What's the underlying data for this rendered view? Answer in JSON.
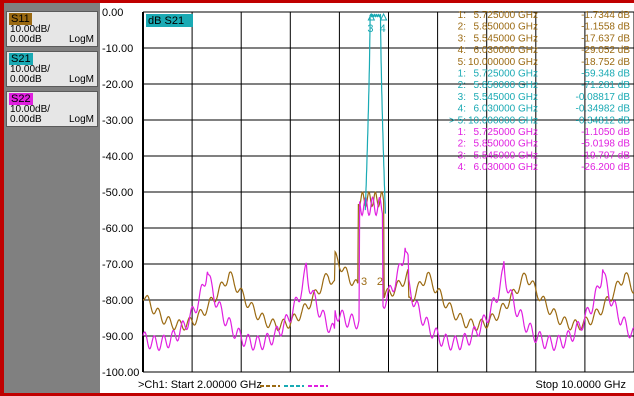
{
  "colors": {
    "s11": "#9b6a12",
    "s21": "#1aaab4",
    "s22": "#e020e0",
    "panel": "#808080",
    "frame": "#c00000",
    "grid": "#000000"
  },
  "traces": [
    {
      "name": "S11",
      "scale": "10.00dB/",
      "ref": "0.00dB",
      "format": "LogM",
      "color": "#9b6a12"
    },
    {
      "name": "S21",
      "scale": "10.00dB/",
      "ref": "0.00dB",
      "format": "LogM",
      "color": "#1aaab4"
    },
    {
      "name": "S22",
      "scale": "10.00dB/",
      "ref": "0.00dB",
      "format": "LogM",
      "color": "#e020e0"
    }
  ],
  "active_trace_label": "dB S21",
  "y_ticks": [
    "0.00",
    "-10.00",
    "-20.00",
    "-30.00",
    "-40.00",
    "-50.00",
    "-60.00",
    "-70.00",
    "-80.00",
    "-90.00",
    "-100.00"
  ],
  "markers": [
    {
      "index": "1:",
      "freq": "5.725000 GHz",
      "value": "-1.7344 dB",
      "color": "#9b6a12"
    },
    {
      "index": "2:",
      "freq": "5.850000 GHz",
      "value": "-1.1558 dB",
      "color": "#9b6a12"
    },
    {
      "index": "3:",
      "freq": "5.545000 GHz",
      "value": "-17.637 dB",
      "color": "#9b6a12"
    },
    {
      "index": "4:",
      "freq": "6.030000 GHz",
      "value": "-29.052 dB",
      "color": "#9b6a12"
    },
    {
      "index": "5:",
      "freq": "10.000000 GHz",
      "value": "-18.752 dB",
      "color": "#9b6a12"
    },
    {
      "index": "1:",
      "freq": "5.725000 GHz",
      "value": "-59.348 dB",
      "color": "#1aaab4"
    },
    {
      "index": "2:",
      "freq": "5.850000 GHz",
      "value": "-71.281 dB",
      "color": "#1aaab4"
    },
    {
      "index": "3:",
      "freq": "5.545000 GHz",
      "value": "-0.08817 dB",
      "color": "#1aaab4"
    },
    {
      "index": "4:",
      "freq": "6.030000 GHz",
      "value": "-0.34982 dB",
      "color": "#1aaab4"
    },
    {
      "index": "> 5:",
      "freq": "10.000000 GHz",
      "value": "-0.34812 dB",
      "color": "#1aaab4"
    },
    {
      "index": "1:",
      "freq": "5.725000 GHz",
      "value": "-1.1050 dB",
      "color": "#e020e0"
    },
    {
      "index": "2:",
      "freq": "5.850000 GHz",
      "value": "-5.0198 dB",
      "color": "#e020e0"
    },
    {
      "index": "3:",
      "freq": "5.545000 GHz",
      "value": "-19.797 dB",
      "color": "#e020e0"
    },
    {
      "index": "4:",
      "freq": "6.030000 GHz",
      "value": "-26.200 dB",
      "color": "#e020e0"
    }
  ],
  "marker_flags": [
    "3",
    "4"
  ],
  "lower_flags": [
    "3",
    "2"
  ],
  "footer": {
    "start": ">Ch1: Start  2.00000 GHz",
    "stop": "Stop  10.0000 GHz"
  },
  "chart_data": {
    "type": "line",
    "x_range_ghz": [
      2.0,
      10.0
    ],
    "ylim": [
      -100,
      0
    ],
    "y_unit": "dB",
    "grid": true,
    "series": [
      {
        "name": "S11",
        "color": "#9b6a12"
      },
      {
        "name": "S21",
        "color": "#1aaab4"
      },
      {
        "name": "S22",
        "color": "#e020e0"
      }
    ]
  }
}
